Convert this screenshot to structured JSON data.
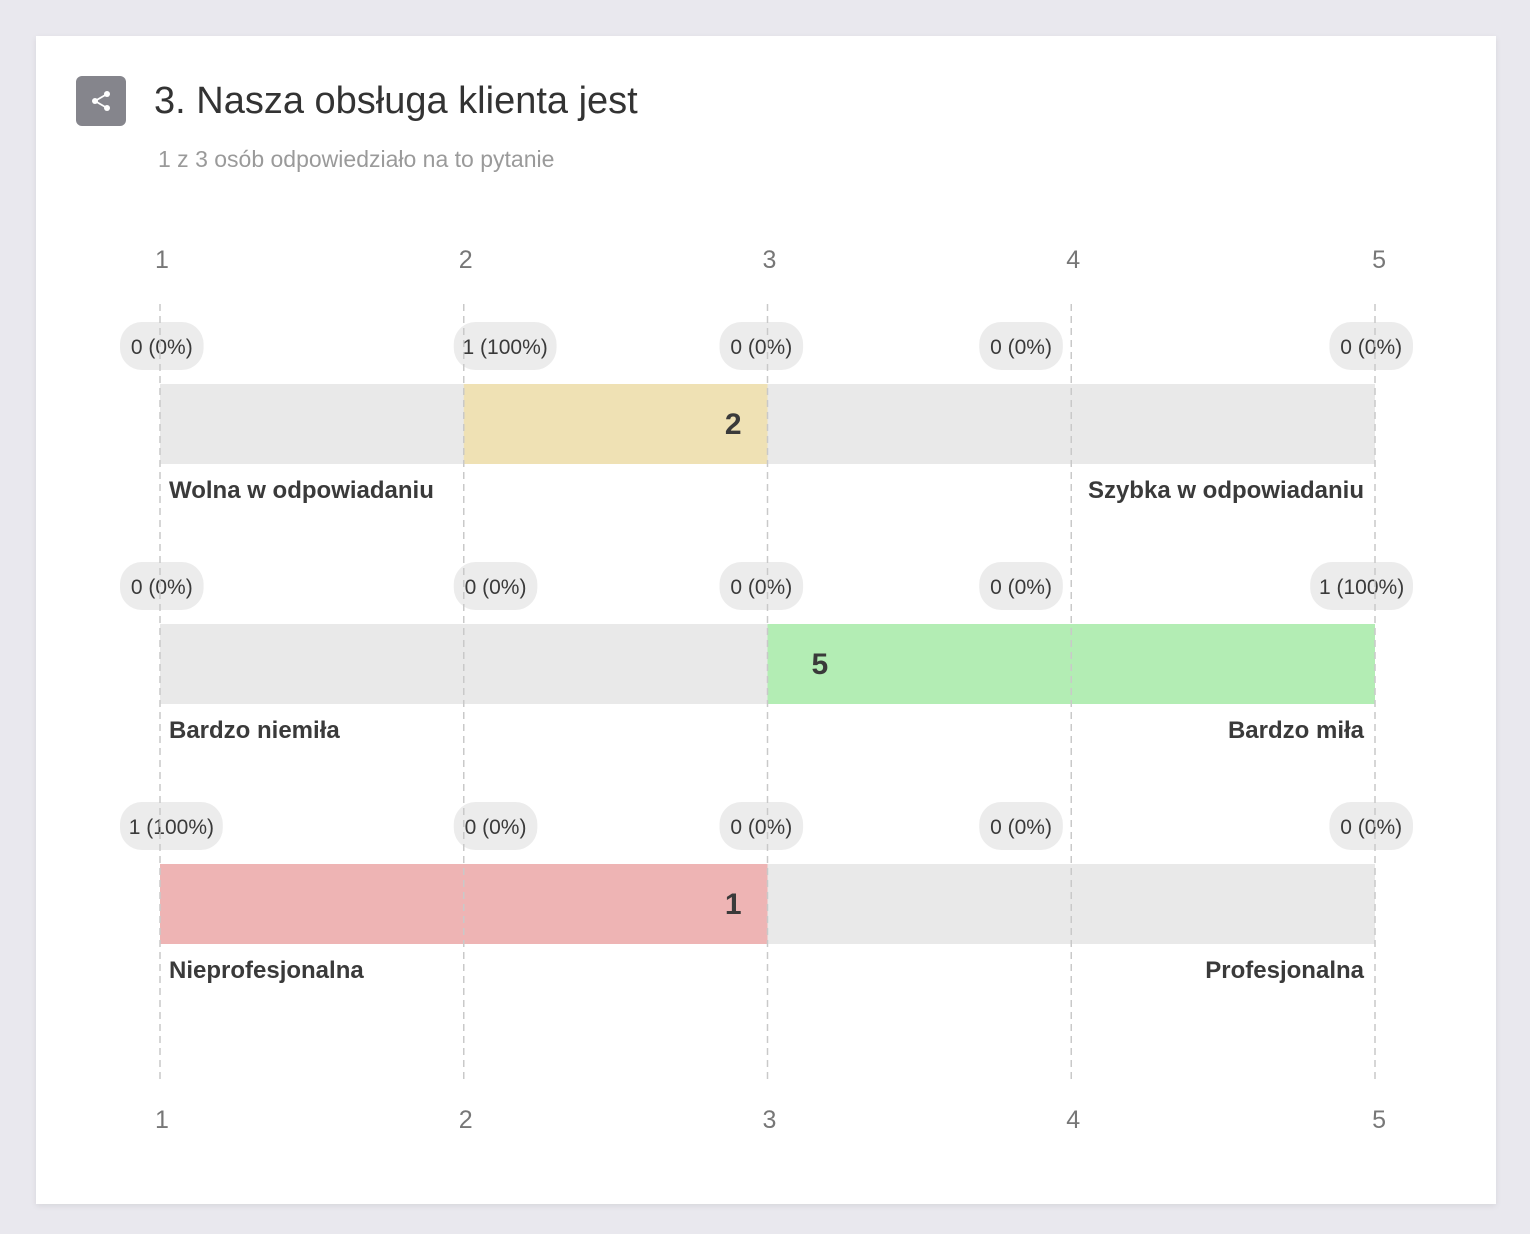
{
  "question": {
    "title": "3. Nasza obsługa klienta jest",
    "subtitle": "1 z 3 osób odpowiedziało na to pytanie"
  },
  "icons": {
    "share": "share-icon"
  },
  "colors": {
    "track": "#e9e9e9",
    "badge": "#ececec",
    "tick": "#777777",
    "label": "#3a3a3a",
    "grid": "#c9c9c9"
  },
  "chart_data": {
    "type": "bar",
    "scale": [
      1,
      2,
      3,
      4,
      5
    ],
    "tick_labels": [
      "1",
      "2",
      "3",
      "4",
      "5"
    ],
    "grid": true,
    "rows": [
      {
        "left_label": "Wolna w odpowiadaniu",
        "right_label": "Szybka w odpowiadaniu",
        "counts": [
          "0 (0%)",
          "1 (100%)",
          "0 (0%)",
          "0 (0%)",
          "0 (0%)"
        ],
        "range": [
          2,
          3
        ],
        "value_label": "2",
        "value_align": "end",
        "color": "#efe1b4"
      },
      {
        "left_label": "Bardzo niemiła",
        "right_label": "Bardzo miła",
        "counts": [
          "0 (0%)",
          "0 (0%)",
          "0 (0%)",
          "0 (0%)",
          "1 (100%)"
        ],
        "range": [
          3,
          5
        ],
        "value_label": "5",
        "value_align": "start",
        "color": "#b3edb4"
      },
      {
        "left_label": "Nieprofesjonalna",
        "right_label": "Profesjonalna",
        "counts": [
          "1 (100%)",
          "0 (0%)",
          "0 (0%)",
          "0 (0%)",
          "0 (0%)"
        ],
        "range": [
          1,
          3
        ],
        "value_label": "1",
        "value_align": "end",
        "color": "#eeb4b4"
      }
    ]
  }
}
